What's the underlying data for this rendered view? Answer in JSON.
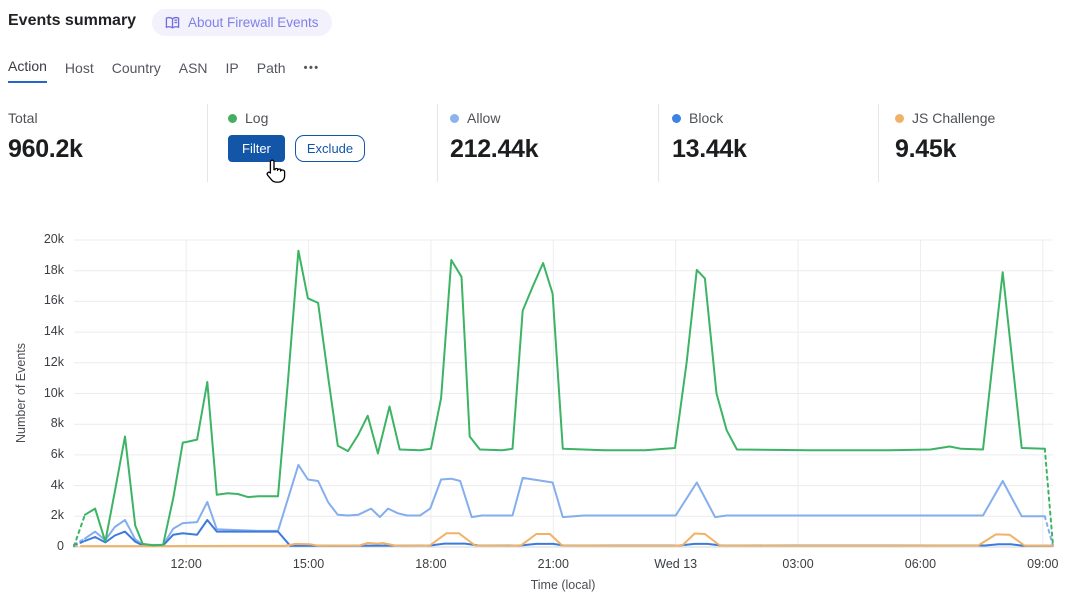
{
  "header": {
    "title": "Events summary",
    "badge_label": "About Firewall Events"
  },
  "tabs": [
    {
      "label": "Action",
      "active": true
    },
    {
      "label": "Host",
      "active": false
    },
    {
      "label": "Country",
      "active": false
    },
    {
      "label": "ASN",
      "active": false
    },
    {
      "label": "IP",
      "active": false
    },
    {
      "label": "Path",
      "active": false
    }
  ],
  "tabs_more": "•••",
  "stats": {
    "total": {
      "label": "Total",
      "value": "960.2k"
    },
    "cards": [
      {
        "label": "Log",
        "color": "#46ad61",
        "buttons": {
          "filter": "Filter",
          "exclude": "Exclude"
        }
      },
      {
        "label": "Allow",
        "color": "#8ab3f0",
        "value": "212.44k"
      },
      {
        "label": "Block",
        "color": "#3e83e0",
        "value": "13.44k"
      },
      {
        "label": "JS Challenge",
        "color": "#f0b269",
        "value": "9.45k"
      }
    ]
  },
  "chart_data": {
    "type": "line",
    "title": "",
    "xlabel": "Time (local)",
    "ylabel": "Number of Events",
    "grid": true,
    "legend_position": "none (series named in stat cards above)",
    "x_unit": "minutes from chart start (~09:15 local, 15-min buckets, 24h span)",
    "x_range": [
      0,
      1440
    ],
    "y_range_k": [
      0,
      20
    ],
    "values_unit": "thousands of events",
    "x_ticks": [
      {
        "t": 165,
        "label": "12:00"
      },
      {
        "t": 345,
        "label": "15:00"
      },
      {
        "t": 525,
        "label": "18:00"
      },
      {
        "t": 705,
        "label": "21:00"
      },
      {
        "t": 885,
        "label": "Wed 13"
      },
      {
        "t": 1065,
        "label": "03:00"
      },
      {
        "t": 1245,
        "label": "06:00"
      },
      {
        "t": 1425,
        "label": "09:00"
      }
    ],
    "y_ticks": [
      {
        "v": 0,
        "label": "0"
      },
      {
        "v": 2,
        "label": "2k"
      },
      {
        "v": 4,
        "label": "4k"
      },
      {
        "v": 6,
        "label": "6k"
      },
      {
        "v": 8,
        "label": "8k"
      },
      {
        "v": 10,
        "label": "10k"
      },
      {
        "v": 12,
        "label": "12k"
      },
      {
        "v": 14,
        "label": "14k"
      },
      {
        "v": 16,
        "label": "16k"
      },
      {
        "v": 18,
        "label": "18k"
      },
      {
        "v": 20,
        "label": "20k"
      }
    ],
    "series": [
      {
        "name": "Allow",
        "color": "#85aeee",
        "dash_first": [
          [
            0,
            0.15
          ],
          [
            16,
            0.55
          ]
        ],
        "points": [
          [
            16,
            0.55
          ],
          [
            31,
            1.0
          ],
          [
            46,
            0.45
          ],
          [
            60,
            1.3
          ],
          [
            75,
            1.76
          ],
          [
            90,
            0.5
          ],
          [
            101,
            0.15
          ],
          [
            131,
            0.13
          ],
          [
            146,
            1.2
          ],
          [
            160,
            1.56
          ],
          [
            181,
            1.62
          ],
          [
            196,
            2.93
          ],
          [
            210,
            1.15
          ],
          [
            241,
            1.1
          ],
          [
            271,
            1.05
          ],
          [
            300,
            1.05
          ],
          [
            330,
            5.35
          ],
          [
            344,
            4.4
          ],
          [
            359,
            4.3
          ],
          [
            374,
            2.9
          ],
          [
            388,
            2.1
          ],
          [
            403,
            2.05
          ],
          [
            418,
            2.1
          ],
          [
            437,
            2.5
          ],
          [
            450,
            1.95
          ],
          [
            462,
            2.5
          ],
          [
            476,
            2.2
          ],
          [
            490,
            2.05
          ],
          [
            509,
            2.05
          ],
          [
            524,
            2.5
          ],
          [
            540,
            4.4
          ],
          [
            555,
            4.45
          ],
          [
            568,
            4.3
          ],
          [
            585,
            1.95
          ],
          [
            600,
            2.05
          ],
          [
            645,
            2.05
          ],
          [
            660,
            4.5
          ],
          [
            690,
            4.3
          ],
          [
            704,
            4.2
          ],
          [
            719,
            1.95
          ],
          [
            750,
            2.05
          ],
          [
            810,
            2.05
          ],
          [
            870,
            2.05
          ],
          [
            885,
            2.05
          ],
          [
            916,
            4.2
          ],
          [
            943,
            1.95
          ],
          [
            960,
            2.05
          ],
          [
            1080,
            2.05
          ],
          [
            1200,
            2.05
          ],
          [
            1320,
            2.05
          ],
          [
            1337,
            2.05
          ],
          [
            1366,
            4.3
          ],
          [
            1394,
            2.0
          ],
          [
            1428,
            2.0
          ]
        ],
        "dash_last": [
          [
            1428,
            2.0
          ],
          [
            1440,
            0.08
          ]
        ]
      },
      {
        "name": "Block",
        "color": "#3d7bdb",
        "dash_first": [
          [
            0,
            0.1
          ],
          [
            16,
            0.4
          ]
        ],
        "points": [
          [
            16,
            0.4
          ],
          [
            31,
            0.65
          ],
          [
            46,
            0.3
          ],
          [
            60,
            0.75
          ],
          [
            75,
            1.0
          ],
          [
            90,
            0.35
          ],
          [
            101,
            0.1
          ],
          [
            131,
            0.1
          ],
          [
            146,
            0.8
          ],
          [
            160,
            0.9
          ],
          [
            181,
            0.8
          ],
          [
            196,
            1.76
          ],
          [
            210,
            1.0
          ],
          [
            241,
            1.0
          ],
          [
            271,
            1.0
          ],
          [
            300,
            1.0
          ],
          [
            318,
            0.08
          ],
          [
            400,
            0.08
          ],
          [
            524,
            0.1
          ],
          [
            545,
            0.22
          ],
          [
            575,
            0.22
          ],
          [
            595,
            0.1
          ],
          [
            656,
            0.1
          ],
          [
            680,
            0.2
          ],
          [
            705,
            0.2
          ],
          [
            720,
            0.1
          ],
          [
            890,
            0.1
          ],
          [
            913,
            0.2
          ],
          [
            932,
            0.2
          ],
          [
            952,
            0.1
          ],
          [
            1340,
            0.1
          ],
          [
            1360,
            0.18
          ],
          [
            1378,
            0.18
          ],
          [
            1396,
            0.08
          ],
          [
            1440,
            0.08
          ]
        ],
        "dash_last": null
      },
      {
        "name": "JS Challenge",
        "color": "#f0b266",
        "dash_first": [
          [
            0,
            0.05
          ],
          [
            16,
            0.06
          ]
        ],
        "points": [
          [
            16,
            0.06
          ],
          [
            120,
            0.06
          ],
          [
            240,
            0.07
          ],
          [
            310,
            0.07
          ],
          [
            326,
            0.2
          ],
          [
            347,
            0.18
          ],
          [
            360,
            0.08
          ],
          [
            420,
            0.1
          ],
          [
            432,
            0.26
          ],
          [
            447,
            0.22
          ],
          [
            454,
            0.26
          ],
          [
            472,
            0.1
          ],
          [
            510,
            0.08
          ],
          [
            524,
            0.12
          ],
          [
            548,
            0.9
          ],
          [
            566,
            0.9
          ],
          [
            590,
            0.1
          ],
          [
            640,
            0.08
          ],
          [
            658,
            0.12
          ],
          [
            680,
            0.85
          ],
          [
            700,
            0.85
          ],
          [
            718,
            0.1
          ],
          [
            800,
            0.08
          ],
          [
            880,
            0.08
          ],
          [
            895,
            0.12
          ],
          [
            913,
            0.88
          ],
          [
            928,
            0.85
          ],
          [
            950,
            0.1
          ],
          [
            1050,
            0.08
          ],
          [
            1200,
            0.08
          ],
          [
            1330,
            0.1
          ],
          [
            1356,
            0.82
          ],
          [
            1376,
            0.8
          ],
          [
            1398,
            0.1
          ],
          [
            1440,
            0.08
          ]
        ],
        "dash_last": null
      },
      {
        "name": "Log",
        "color": "#3cb464",
        "dash_first": [
          [
            0,
            0.05
          ],
          [
            16,
            2.1
          ]
        ],
        "points": [
          [
            16,
            2.1
          ],
          [
            31,
            2.5
          ],
          [
            46,
            0.35
          ],
          [
            60,
            3.6
          ],
          [
            75,
            7.2
          ],
          [
            90,
            1.4
          ],
          [
            101,
            0.2
          ],
          [
            116,
            0.12
          ],
          [
            131,
            0.15
          ],
          [
            146,
            3.2
          ],
          [
            160,
            6.8
          ],
          [
            166,
            6.85
          ],
          [
            181,
            7.0
          ],
          [
            196,
            10.75
          ],
          [
            210,
            3.4
          ],
          [
            226,
            3.5
          ],
          [
            241,
            3.45
          ],
          [
            256,
            3.25
          ],
          [
            271,
            3.3
          ],
          [
            300,
            3.3
          ],
          [
            315,
            11.0
          ],
          [
            330,
            19.3
          ],
          [
            344,
            16.2
          ],
          [
            359,
            15.9
          ],
          [
            374,
            11.0
          ],
          [
            388,
            6.6
          ],
          [
            403,
            6.25
          ],
          [
            418,
            7.3
          ],
          [
            432,
            8.55
          ],
          [
            447,
            6.1
          ],
          [
            464,
            9.15
          ],
          [
            479,
            6.35
          ],
          [
            509,
            6.3
          ],
          [
            525,
            6.4
          ],
          [
            540,
            9.7
          ],
          [
            555,
            18.7
          ],
          [
            570,
            17.6
          ],
          [
            582,
            7.2
          ],
          [
            597,
            6.35
          ],
          [
            630,
            6.3
          ],
          [
            645,
            6.4
          ],
          [
            660,
            15.4
          ],
          [
            675,
            17.0
          ],
          [
            690,
            18.5
          ],
          [
            704,
            16.5
          ],
          [
            719,
            6.4
          ],
          [
            780,
            6.3
          ],
          [
            840,
            6.3
          ],
          [
            884,
            6.45
          ],
          [
            901,
            12.0
          ],
          [
            916,
            18.05
          ],
          [
            928,
            17.5
          ],
          [
            945,
            10.0
          ],
          [
            960,
            7.6
          ],
          [
            975,
            6.35
          ],
          [
            1080,
            6.3
          ],
          [
            1200,
            6.3
          ],
          [
            1260,
            6.35
          ],
          [
            1288,
            6.55
          ],
          [
            1305,
            6.4
          ],
          [
            1337,
            6.35
          ],
          [
            1366,
            17.9
          ],
          [
            1394,
            6.45
          ],
          [
            1428,
            6.4
          ]
        ],
        "dash_last": [
          [
            1428,
            6.4
          ],
          [
            1440,
            0.1
          ]
        ]
      }
    ]
  }
}
